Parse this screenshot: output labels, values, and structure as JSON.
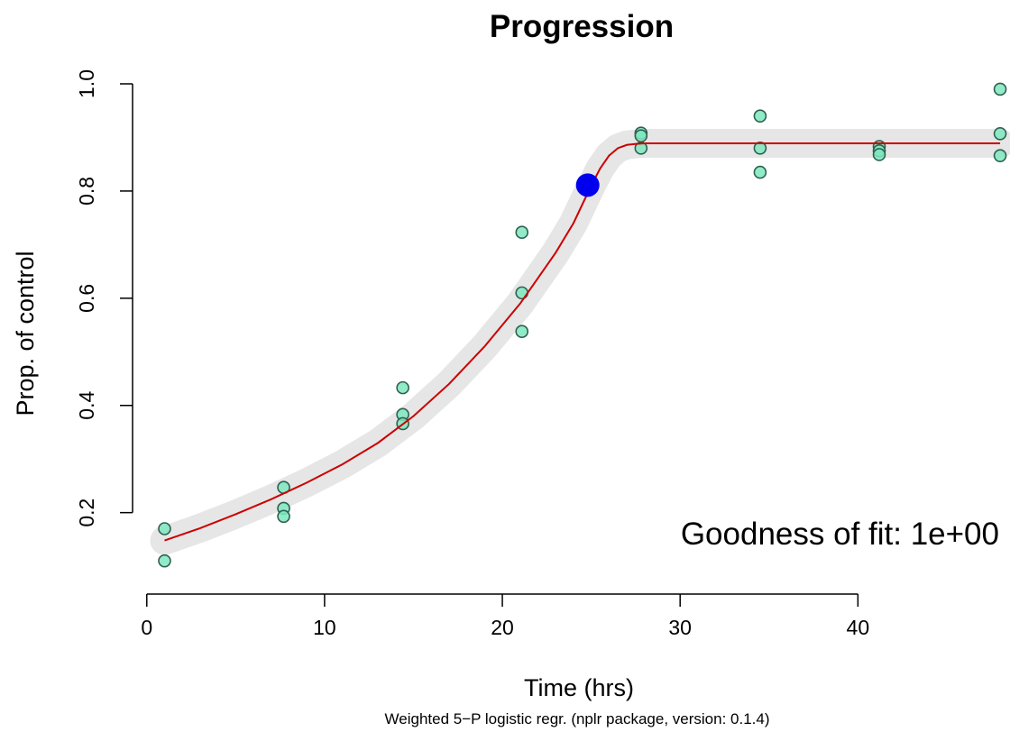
{
  "chart_data": {
    "type": "scatter",
    "title": "Progression",
    "xlabel": "Time (hrs)",
    "ylabel": "Prop. of control",
    "footnote": "Weighted 5−P logistic regr. (nplr package, version: 0.1.4)",
    "annotation": "Goodness of fit: 1e+00",
    "xlim": [
      -0.8,
      48.2
    ],
    "ylim": [
      0.08,
      1.0
    ],
    "x_ticks": [
      0,
      10,
      20,
      30,
      40
    ],
    "x_tick_labels": [
      "0",
      "10",
      "20",
      "30",
      "40"
    ],
    "y_ticks": [
      0.2,
      0.4,
      0.6,
      0.8,
      1.0
    ],
    "y_tick_labels": [
      "0.2",
      "0.4",
      "0.6",
      "0.8",
      "1.0"
    ],
    "grid": false,
    "colors": {
      "points_fill": "#7ee8c0",
      "points_stroke": "#2f5f50",
      "fit_line": "#cc0000",
      "confidence_band": "#e6e6e6",
      "inflection_point": "#0000ee",
      "text": "#000000"
    },
    "series": [
      {
        "kind": "points",
        "x": [
          1,
          1,
          7.7,
          7.7,
          7.7,
          14.4,
          14.4,
          14.4,
          21.1,
          21.1,
          21.1,
          27.8,
          27.8,
          27.8,
          34.5,
          34.5,
          34.5,
          41.2,
          41.2,
          41.2,
          48,
          48,
          48
        ],
        "y": [
          0.17,
          0.11,
          0.247,
          0.208,
          0.193,
          0.433,
          0.383,
          0.366,
          0.723,
          0.61,
          0.538,
          0.908,
          0.903,
          0.88,
          0.94,
          0.88,
          0.835,
          0.883,
          0.875,
          0.868,
          0.99,
          0.907,
          0.866
        ]
      },
      {
        "kind": "fit",
        "x": [
          1,
          3,
          5,
          7,
          9,
          11,
          13,
          15,
          17,
          19,
          21,
          23,
          24,
          25,
          25.5,
          26,
          26.5,
          27,
          27.5,
          28,
          30,
          35,
          40,
          45,
          48
        ],
        "y": [
          0.148,
          0.171,
          0.197,
          0.225,
          0.256,
          0.29,
          0.33,
          0.38,
          0.44,
          0.51,
          0.59,
          0.685,
          0.74,
          0.81,
          0.842,
          0.866,
          0.88,
          0.886,
          0.888,
          0.889,
          0.889,
          0.889,
          0.889,
          0.889,
          0.889
        ]
      },
      {
        "kind": "inflection",
        "x": [
          24.8
        ],
        "y": [
          0.811
        ]
      }
    ]
  }
}
